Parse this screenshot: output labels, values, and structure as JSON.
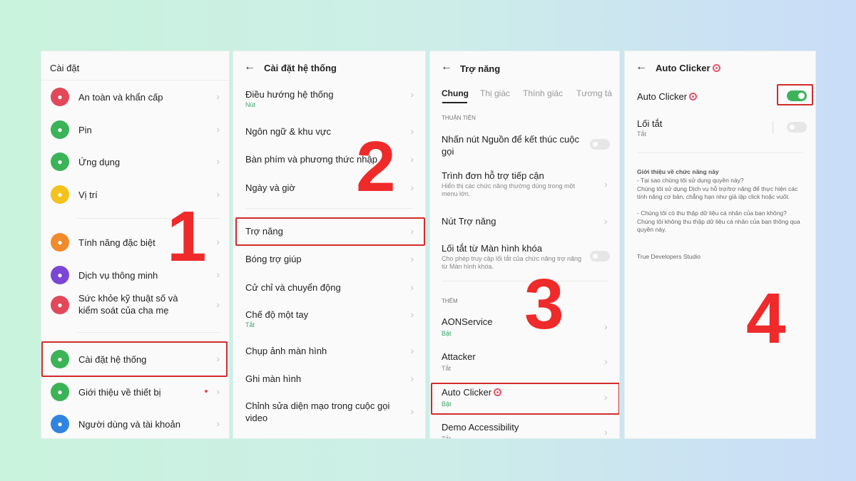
{
  "colors": {
    "highlight": "#d22b2b",
    "step_number": "#ef2a2a",
    "toggle_on": "#3db25a",
    "status_on": "#3aa76d"
  },
  "panel1": {
    "title": "Cài đặt",
    "items": [
      {
        "label": "An toàn và khẩn cấp",
        "icon": "emergency-icon",
        "color": "#e2475a"
      },
      {
        "label": "Pin",
        "icon": "battery-icon",
        "color": "#3bb357"
      },
      {
        "label": "Ứng dụng",
        "icon": "apps-icon",
        "color": "#3bb357"
      },
      {
        "label": "Vị trí",
        "icon": "location-icon",
        "color": "#f3c21b"
      },
      {
        "label": "Tính năng đặc biệt",
        "icon": "star-icon",
        "color": "#f08b2b"
      },
      {
        "label": "Dịch vụ thông minh",
        "icon": "smart-icon",
        "color": "#7b46d6"
      },
      {
        "label": "Sức khỏe kỹ thuật số và kiểm soát của cha mẹ",
        "icon": "wellbeing-icon",
        "color": "#e2475a"
      },
      {
        "label": "Cài đặt hệ thống",
        "icon": "system-settings-icon",
        "color": "#3bb357"
      },
      {
        "label": "Giới thiệu về thiết bị",
        "icon": "device-icon",
        "color": "#3bb357"
      },
      {
        "label": "Người dùng và tài khoản",
        "icon": "user-icon",
        "color": "#2f84e0"
      }
    ],
    "step": "1"
  },
  "panel2": {
    "title": "Cài đặt hệ thống",
    "items": [
      {
        "label": "Điều hướng hệ thống",
        "sub": "Nút"
      },
      {
        "label": "Ngôn ngữ & khu vực"
      },
      {
        "label": "Bàn phím và phương thức nhập"
      },
      {
        "label": "Ngày và giờ"
      },
      {
        "label": "Trợ năng"
      },
      {
        "label": "Bóng trợ giúp"
      },
      {
        "label": "Cử chỉ và chuyển động"
      },
      {
        "label": "Chế độ một tay",
        "sub": "Tắt"
      },
      {
        "label": "Chụp ảnh màn hình"
      },
      {
        "label": "Ghi màn hình"
      },
      {
        "label": "Chỉnh sửa diện mạo trong cuộc gọi video"
      }
    ],
    "step": "2"
  },
  "panel3": {
    "title": "Trợ năng",
    "tabs": [
      "Chung",
      "Thị giác",
      "Thính giác",
      "Tương tá"
    ],
    "section1": "THUẬN TIỆN",
    "items1": [
      {
        "label": "Nhấn nút Nguồn để kết thúc cuộc gọi",
        "toggle": false
      },
      {
        "label": "Trình đơn hỗ trợ tiếp cận",
        "sub": "Hiển thị các chức năng thường dùng trong một menu lớn."
      },
      {
        "label": "Nút Trợ năng"
      },
      {
        "label": "Lối tắt từ Màn hình khóa",
        "sub": "Cho phép truy cập lối tắt của chức năng trợ năng từ Màn hình khóa.",
        "toggle": false
      }
    ],
    "section2": "THÊM",
    "items2": [
      {
        "label": "AONService",
        "sub": "Bật"
      },
      {
        "label": "Attacker",
        "sub": "Tắt"
      },
      {
        "label": "Auto Clicker",
        "sub": "Bật"
      },
      {
        "label": "Demo Accessibility",
        "sub": "Tắt"
      }
    ],
    "step": "3"
  },
  "panel4": {
    "title": "Auto Clicker",
    "toggle_label": "Auto Clicker",
    "toggle_on": true,
    "shortcut_label": "Lối tắt",
    "shortcut_sub": "Tắt",
    "shortcut_on": false,
    "about_title": "Giới thiệu về chức năng này",
    "about_text": "- Tại sao chúng tôi sử dụng quyền này?\nChúng tôi sử dụng Dịch vụ hỗ trợ/trợ năng để thực hiện các tính năng cơ bản, chẳng hạn như giả lập click hoặc vuốt.\n\n- Chúng tôi có thu thập dữ liệu cá nhân của bạn không?\nChúng tôi không thu thập dữ liệu cá nhân của bạn thông qua quyền này.",
    "developer": "True Developers Studio",
    "step": "4"
  }
}
